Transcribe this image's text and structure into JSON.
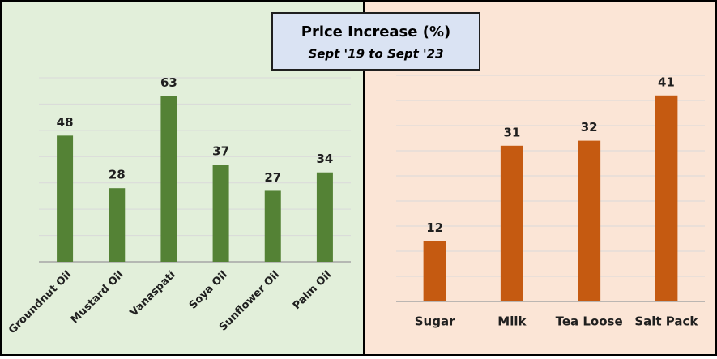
{
  "title": "Price Increase (%)",
  "subtitle": "Sept '19 to Sept '23",
  "chart_data": [
    {
      "type": "bar",
      "categories": [
        "Groundnut Oil",
        "Mustard Oil",
        "Vanaspati",
        "Soya Oil",
        "Sunflower Oil",
        "Palm Oil"
      ],
      "values": [
        48,
        28,
        63,
        37,
        27,
        34
      ],
      "color": "#548235",
      "ylim": [
        0,
        70
      ],
      "yticks": [
        0,
        10,
        20,
        30,
        40,
        50,
        60,
        70
      ],
      "grid": true
    },
    {
      "type": "bar",
      "categories": [
        "Sugar",
        "Milk",
        "Tea Loose",
        "Salt Pack"
      ],
      "values": [
        12,
        31,
        32,
        41
      ],
      "color": "#c55a11",
      "ylim": [
        0,
        45
      ],
      "yticks": [
        0,
        5,
        10,
        15,
        20,
        25,
        30,
        35,
        40,
        45
      ],
      "grid": true
    }
  ]
}
